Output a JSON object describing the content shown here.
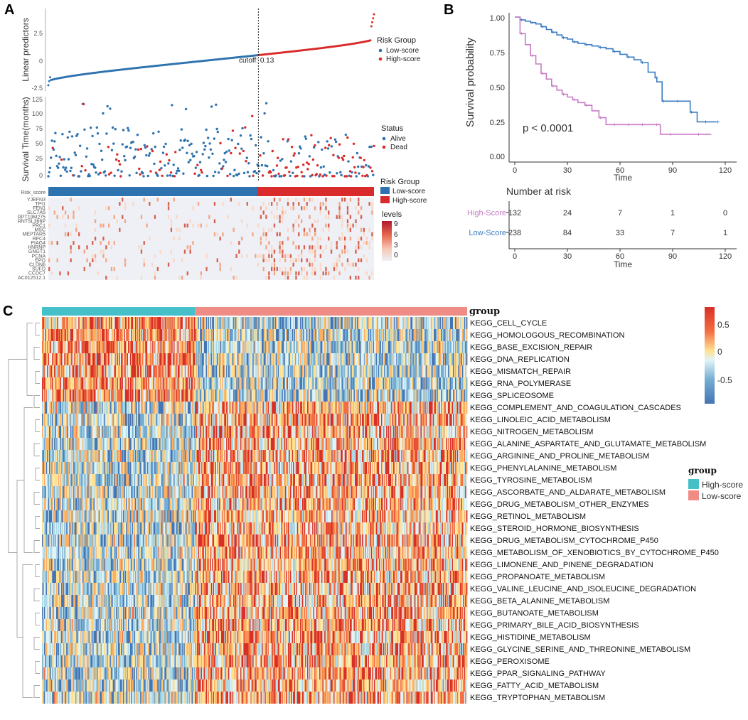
{
  "panels": {
    "a": "A",
    "b": "B",
    "c": "C"
  },
  "colors": {
    "low": "#2e73b0",
    "high": "#d92b2b",
    "km_high": "#c77cc6",
    "km_low": "#3a7cc3",
    "teal": "#46c0c8",
    "salmon": "#ef8c86"
  },
  "chart_data": [
    {
      "id": "risk_score_plot",
      "type": "scatter",
      "ylabel": "Linear predictors",
      "yticks": [
        "2.5",
        "0",
        "-2.5"
      ],
      "ylim": [
        -2.8,
        4.4
      ],
      "n_samples": 370,
      "cutoff_index": 238,
      "cutoff_label": "cutoff: 0.13",
      "legend_title": "Risk Group",
      "legend": [
        "Low-score",
        "High-score"
      ]
    },
    {
      "id": "survival_status_plot",
      "type": "scatter",
      "ylabel": "Survival Time(months)",
      "yticks": [
        "125",
        "100",
        "75",
        "50",
        "25",
        "0"
      ],
      "ylim": [
        0,
        125
      ],
      "legend_title": "Status",
      "legend": [
        "Alive",
        "Dead"
      ]
    },
    {
      "id": "risk_gene_heatmap",
      "type": "heatmap",
      "annotation_row": "Risk_score",
      "genes": [
        "YJEFN3",
        "TPI1",
        "FEN1",
        "SLC7A5",
        "RPT19M275",
        "RNTSL368P",
        "PRC1",
        "MSC",
        "MEPTAR5",
        "RFC4",
        "PIAG4",
        "HNRNP",
        "GNGT1",
        "PCNA",
        "EPO",
        "CLDN6",
        "SUFD",
        "CCDC7",
        "AC012512.1"
      ],
      "legend_group_title": "Risk Group",
      "legend_group": [
        "Low-score",
        "High-score"
      ],
      "legend_levels_title": "levels",
      "legend_levels": [
        "9",
        "6",
        "3",
        "0"
      ]
    },
    {
      "id": "km_curve",
      "type": "line",
      "ylabel": "Survival probability",
      "xlabel": "Time",
      "xticks": [
        0,
        30,
        60,
        90,
        120
      ],
      "yticks": [
        "1.00",
        "0.75",
        "0.50",
        "0.25",
        "0.00"
      ],
      "xlim": [
        0,
        120
      ],
      "ylim": [
        0,
        1
      ],
      "pvalue": "p < 0.0001",
      "series": [
        {
          "name": "Low-Score",
          "x": [
            0,
            3,
            6,
            9,
            12,
            15,
            18,
            21,
            24,
            27,
            30,
            33,
            36,
            40,
            44,
            48,
            52,
            56,
            60,
            64,
            68,
            72,
            76,
            80,
            81,
            84,
            88,
            92,
            96,
            100,
            104,
            108,
            112,
            115
          ],
          "y": [
            1.0,
            0.98,
            0.97,
            0.96,
            0.95,
            0.93,
            0.91,
            0.89,
            0.87,
            0.85,
            0.84,
            0.82,
            0.81,
            0.8,
            0.79,
            0.78,
            0.77,
            0.75,
            0.73,
            0.71,
            0.69,
            0.67,
            0.6,
            0.56,
            0.53,
            0.39,
            0.39,
            0.39,
            0.39,
            0.31,
            0.24,
            0.24,
            0.24,
            0.24
          ]
        },
        {
          "name": "High-Score",
          "x": [
            0,
            3,
            6,
            9,
            12,
            15,
            18,
            21,
            24,
            27,
            30,
            33,
            36,
            40,
            44,
            48,
            52,
            56,
            60,
            64,
            68,
            72,
            76,
            80,
            83,
            88,
            96,
            104,
            112
          ],
          "y": [
            1.0,
            0.88,
            0.8,
            0.72,
            0.66,
            0.59,
            0.55,
            0.5,
            0.47,
            0.44,
            0.42,
            0.4,
            0.38,
            0.36,
            0.32,
            0.27,
            0.22,
            0.22,
            0.22,
            0.22,
            0.22,
            0.22,
            0.22,
            0.22,
            0.15,
            0.15,
            0.15,
            0.15,
            0.15
          ]
        }
      ]
    },
    {
      "id": "risk_table",
      "type": "table",
      "title": "Number at risk",
      "xlabel": "Time",
      "xticks": [
        0,
        30,
        60,
        90,
        120
      ],
      "rows": [
        {
          "name": "High-Score",
          "values": [
            "132",
            "24",
            "7",
            "1",
            "0"
          ]
        },
        {
          "name": "Low-Score",
          "values": [
            "238",
            "84",
            "33",
            "7",
            "1"
          ]
        }
      ]
    },
    {
      "id": "kegg_heatmap",
      "type": "heatmap",
      "annotation_label": "group",
      "n_columns": 420,
      "high_score_fraction": 0.36,
      "rows": [
        "KEGG_CELL_CYCLE",
        "KEGG_HOMOLOGOUS_RECOMBINATION",
        "KEGG_BASE_EXCISION_REPAIR",
        "KEGG_DNA_REPLICATION",
        "KEGG_MISMATCH_REPAIR",
        "KEGG_RNA_POLYMERASE",
        "KEGG_SPLICEOSOME",
        "KEGG_COMPLEMENT_AND_COAGULATION_CASCADES",
        "KEGG_LINOLEIC_ACID_METABOLISM",
        "KEGG_NITROGEN_METABOLISM",
        "KEGG_ALANINE_ASPARTATE_AND_GLUTAMATE_METABOLISM",
        "KEGG_ARGININE_AND_PROLINE_METABOLISM",
        "KEGG_PHENYLALANINE_METABOLISM",
        "KEGG_TYROSINE_METABOLISM",
        "KEGG_ASCORBATE_AND_ALDARATE_METABOLISM",
        "KEGG_DRUG_METABOLISM_OTHER_ENZYMES",
        "KEGG_RETINOL_METABOLISM",
        "KEGG_STEROID_HORMONE_BIOSYNTHESIS",
        "KEGG_DRUG_METABOLISM_CYTOCHROME_P450",
        "KEGG_METABOLISM_OF_XENOBIOTICS_BY_CYTOCHROME_P450",
        "KEGG_LIMONENE_AND_PINENE_DEGRADATION",
        "KEGG_PROPANOATE_METABOLISM",
        "KEGG_VALINE_LEUCINE_AND_ISOLEUCINE_DEGRADATION",
        "KEGG_BETA_ALANINE_METABOLISM",
        "KEGG_BUTANOATE_METABOLISM",
        "KEGG_PRIMARY_BILE_ACID_BIOSYNTHESIS",
        "KEGG_HISTIDINE_METABOLISM",
        "KEGG_GLYCINE_SERINE_AND_THREONINE_METABOLISM",
        "KEGG_PEROXISOME",
        "KEGG_PPAR_SIGNALING_PATHWAY",
        "KEGG_FATTY_ACID_METABOLISM",
        "KEGG_TRYPTOPHAN_METABOLISM"
      ],
      "colorbar_ticks": [
        "0.5",
        "0",
        "-0.5"
      ],
      "legend_title": "group",
      "legend": [
        "High-score",
        "Low-score"
      ]
    }
  ]
}
